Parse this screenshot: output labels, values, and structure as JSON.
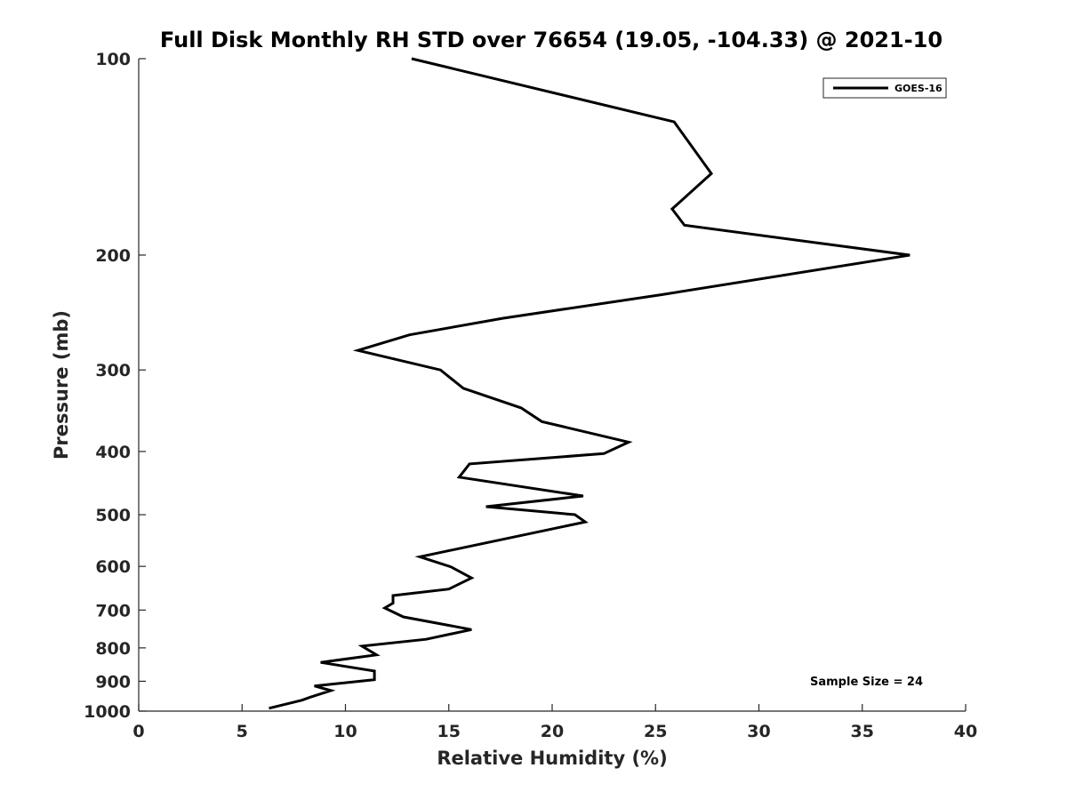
{
  "chart_data": {
    "type": "line",
    "title": "Full Disk Monthly RH STD over 76654 (19.05, -104.33) @ 2021-10",
    "xlabel": "Relative Humidity (%)",
    "ylabel": "Pressure (mb)",
    "xlim": [
      0,
      40
    ],
    "ylim": [
      100,
      1000
    ],
    "y_scale": "log",
    "y_reversed": true,
    "x_ticks": [
      0,
      5,
      10,
      15,
      20,
      25,
      30,
      35,
      40
    ],
    "x_tick_labels": [
      "0",
      "5",
      "10",
      "15",
      "20",
      "25",
      "30",
      "35",
      "40"
    ],
    "y_ticks": [
      100,
      200,
      300,
      400,
      500,
      600,
      700,
      800,
      900,
      1000
    ],
    "y_tick_labels": [
      "100",
      "200",
      "300",
      "400",
      "500",
      "600",
      "700",
      "800",
      "900",
      "1000"
    ],
    "grid": false,
    "legend_position": "top-right",
    "annotation": "Sample Size = 24",
    "series": [
      {
        "name": "GOES-16",
        "color": "#000000",
        "x": [
          13.2,
          25.9,
          27.7,
          25.8,
          26.4,
          37.3,
          25.3,
          17.6,
          13.1,
          10.6,
          14.6,
          15.7,
          18.5,
          19.5,
          23.7,
          22.5,
          16.0,
          15.5,
          21.5,
          16.8,
          21.1,
          21.6,
          13.6,
          15.1,
          16.1,
          15.0,
          12.3,
          12.3,
          11.9,
          12.8,
          16.1,
          13.9,
          10.8,
          11.5,
          8.8,
          11.4,
          11.4,
          10.7,
          8.5,
          9.3,
          8.3,
          7.9,
          6.3
        ],
        "y": [
          100,
          125,
          150,
          170,
          180,
          200,
          230,
          250,
          265,
          280,
          300,
          320,
          343,
          360,
          387,
          403,
          418,
          438,
          468,
          486,
          500,
          513,
          580,
          601,
          625,
          650,
          665,
          683,
          695,
          717,
          750,
          776,
          795,
          820,
          842,
          868,
          895,
          900,
          915,
          930,
          952,
          962,
          990
        ]
      }
    ]
  }
}
